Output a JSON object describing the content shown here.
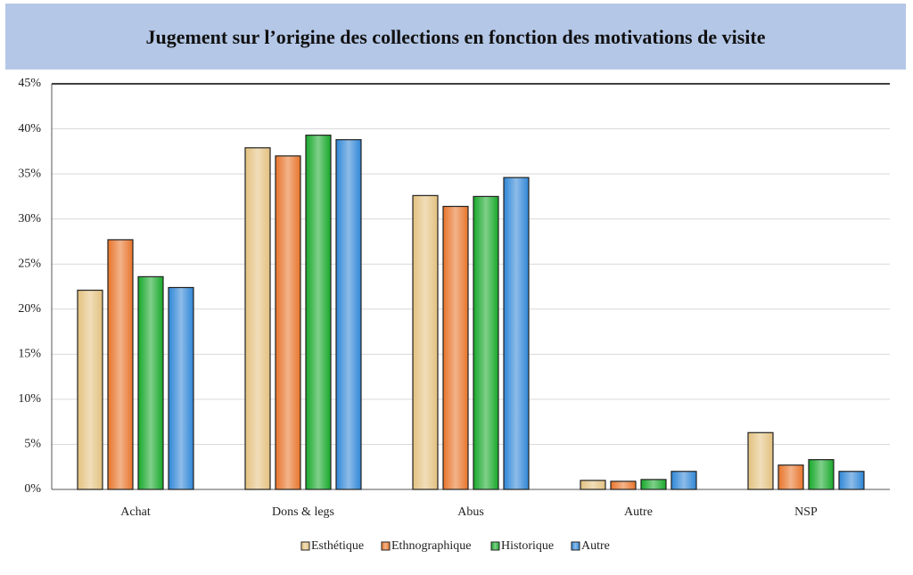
{
  "chart_data": {
    "type": "bar",
    "title": "Jugement sur l’origine des collections en fonction des motivations de visite",
    "categories": [
      "Achat",
      "Dons & legs",
      "Abus",
      "Autre",
      "NSP"
    ],
    "series": [
      {
        "name": "Esthétique",
        "color": "#e3c17f",
        "values": [
          22.1,
          37.9,
          32.6,
          1.0,
          6.3
        ]
      },
      {
        "name": "Ethnographique",
        "color": "#e8742a",
        "values": [
          27.7,
          37.0,
          31.4,
          0.9,
          2.7
        ]
      },
      {
        "name": "Historique",
        "color": "#17a82a",
        "values": [
          23.6,
          39.3,
          32.5,
          1.1,
          3.3
        ]
      },
      {
        "name": "Autre",
        "color": "#2f86d6",
        "values": [
          22.4,
          38.8,
          34.6,
          2.0,
          2.0
        ]
      }
    ],
    "ylim": [
      0,
      45
    ],
    "yticks": [
      {
        "value": 0,
        "label": "0%"
      },
      {
        "value": 5,
        "label": "5%"
      },
      {
        "value": 10,
        "label": "10%"
      },
      {
        "value": 15,
        "label": "15%"
      },
      {
        "value": 20,
        "label": "20%"
      },
      {
        "value": 25,
        "label": "25%"
      },
      {
        "value": 30,
        "label": "30%"
      },
      {
        "value": 35,
        "label": "35%"
      },
      {
        "value": 40,
        "label": "40%"
      },
      {
        "value": 45,
        "label": "45%"
      }
    ],
    "grid": true,
    "legend": "bottom"
  }
}
